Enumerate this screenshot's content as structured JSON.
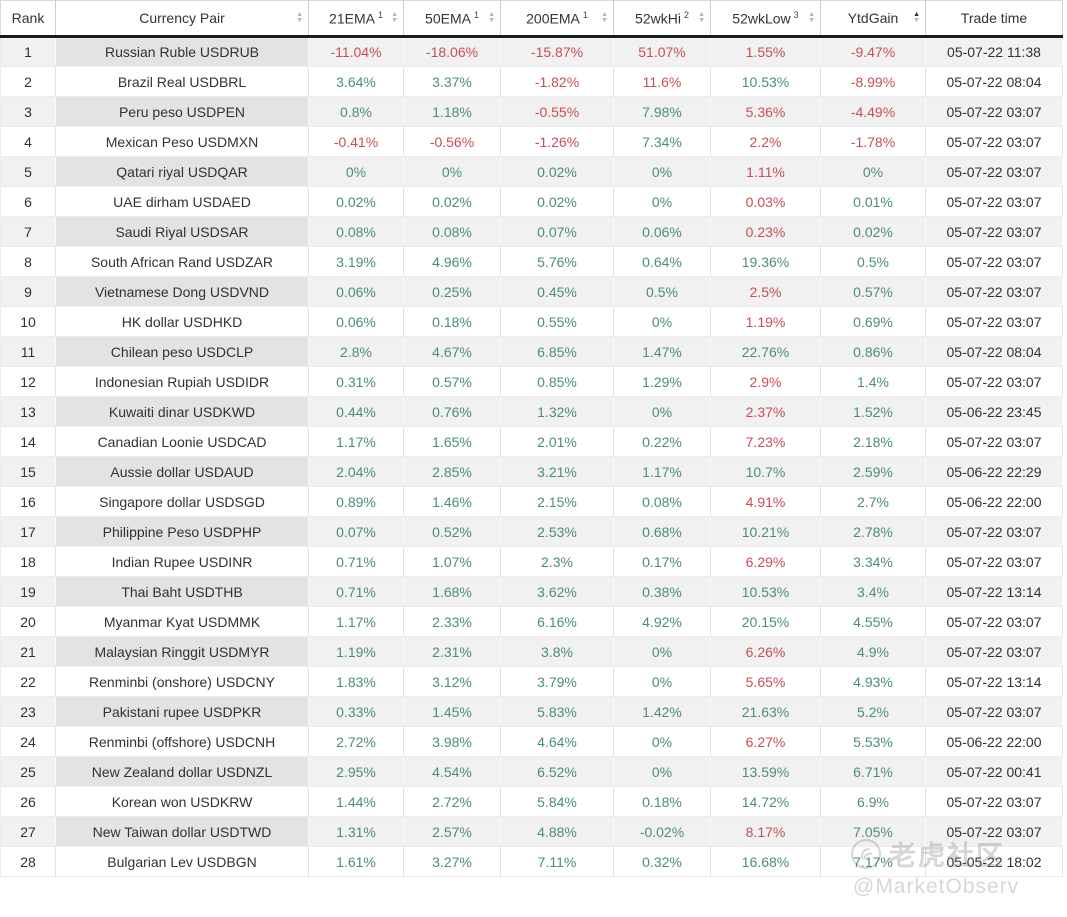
{
  "watermark": {
    "community": "老虎社区",
    "handle": "@MarketObserv",
    "logo_icon": "hand-gesture-in-circle"
  },
  "colors": {
    "positive_text": "#4b8e78",
    "negative_text": "#c94d56",
    "stripe_row_bg": "#f1f1f1",
    "stripe_pair_cell_bg": "#e3e3e3",
    "header_rule": "#1c1c1c"
  },
  "chart_data": {
    "type": "table",
    "sorted_by": "YtdGain ascending",
    "columns": [
      {
        "key": "rank",
        "label": "Rank",
        "sortable": false
      },
      {
        "key": "pair",
        "label": "Currency Pair",
        "sortable": true
      },
      {
        "key": "ema21",
        "label": "21EMA",
        "sup": "1",
        "sortable": true
      },
      {
        "key": "ema50",
        "label": "50EMA",
        "sup": "1",
        "sortable": true
      },
      {
        "key": "ema200",
        "label": "200EMA",
        "sup": "1",
        "sortable": true
      },
      {
        "key": "hi",
        "label": "52wkHi",
        "sup": "2",
        "sortable": true
      },
      {
        "key": "low",
        "label": "52wkLow",
        "sup": "3",
        "sortable": true
      },
      {
        "key": "ytd",
        "label": "YtdGain",
        "sortable": true,
        "sorted": "asc"
      },
      {
        "key": "time",
        "label": "Trade time",
        "sortable": false
      }
    ],
    "rows": [
      {
        "rank": "1",
        "pair": "Russian Ruble USDRUB",
        "ema21": "-11.04%",
        "ema50": "-18.06%",
        "ema200": "-15.87%",
        "hi": "51.07%",
        "hi_color": "red",
        "low": "1.55%",
        "low_color": "red",
        "ytd": "-9.47%",
        "time": "05-07-22 11:38"
      },
      {
        "rank": "2",
        "pair": "Brazil Real USDBRL",
        "ema21": "3.64%",
        "ema50": "3.37%",
        "ema200": "-1.82%",
        "hi": "11.6%",
        "hi_color": "red",
        "low": "10.53%",
        "low_color": "green",
        "ytd": "-8.99%",
        "time": "05-07-22 08:04"
      },
      {
        "rank": "3",
        "pair": "Peru peso USDPEN",
        "ema21": "0.8%",
        "ema50": "1.18%",
        "ema200": "-0.55%",
        "hi": "7.98%",
        "hi_color": "green",
        "low": "5.36%",
        "low_color": "red",
        "ytd": "-4.49%",
        "time": "05-07-22 03:07"
      },
      {
        "rank": "4",
        "pair": "Mexican Peso USDMXN",
        "ema21": "-0.41%",
        "ema50": "-0.56%",
        "ema200": "-1.26%",
        "hi": "7.34%",
        "hi_color": "green",
        "low": "2.2%",
        "low_color": "red",
        "ytd": "-1.78%",
        "time": "05-07-22 03:07"
      },
      {
        "rank": "5",
        "pair": "Qatari riyal USDQAR",
        "ema21": "0%",
        "ema50": "0%",
        "ema200": "0.02%",
        "hi": "0%",
        "hi_color": "green",
        "low": "1.11%",
        "low_color": "red",
        "ytd": "0%",
        "time": "05-07-22 03:07"
      },
      {
        "rank": "6",
        "pair": "UAE dirham USDAED",
        "ema21": "0.02%",
        "ema50": "0.02%",
        "ema200": "0.02%",
        "hi": "0%",
        "hi_color": "green",
        "low": "0.03%",
        "low_color": "red",
        "ytd": "0.01%",
        "time": "05-07-22 03:07"
      },
      {
        "rank": "7",
        "pair": "Saudi Riyal USDSAR",
        "ema21": "0.08%",
        "ema50": "0.08%",
        "ema200": "0.07%",
        "hi": "0.06%",
        "hi_color": "green",
        "low": "0.23%",
        "low_color": "red",
        "ytd": "0.02%",
        "time": "05-07-22 03:07"
      },
      {
        "rank": "8",
        "pair": "South African Rand USDZAR",
        "ema21": "3.19%",
        "ema50": "4.96%",
        "ema200": "5.76%",
        "hi": "0.64%",
        "hi_color": "green",
        "low": "19.36%",
        "low_color": "green",
        "ytd": "0.5%",
        "time": "05-07-22 03:07"
      },
      {
        "rank": "9",
        "pair": "Vietnamese Dong USDVND",
        "ema21": "0.06%",
        "ema50": "0.25%",
        "ema200": "0.45%",
        "hi": "0.5%",
        "hi_color": "green",
        "low": "2.5%",
        "low_color": "red",
        "ytd": "0.57%",
        "time": "05-07-22 03:07"
      },
      {
        "rank": "10",
        "pair": "HK dollar USDHKD",
        "ema21": "0.06%",
        "ema50": "0.18%",
        "ema200": "0.55%",
        "hi": "0%",
        "hi_color": "green",
        "low": "1.19%",
        "low_color": "red",
        "ytd": "0.69%",
        "time": "05-07-22 03:07"
      },
      {
        "rank": "11",
        "pair": "Chilean peso USDCLP",
        "ema21": "2.8%",
        "ema50": "4.67%",
        "ema200": "6.85%",
        "hi": "1.47%",
        "hi_color": "green",
        "low": "22.76%",
        "low_color": "green",
        "ytd": "0.86%",
        "time": "05-07-22 08:04"
      },
      {
        "rank": "12",
        "pair": "Indonesian Rupiah USDIDR",
        "ema21": "0.31%",
        "ema50": "0.57%",
        "ema200": "0.85%",
        "hi": "1.29%",
        "hi_color": "green",
        "low": "2.9%",
        "low_color": "red",
        "ytd": "1.4%",
        "time": "05-07-22 03:07"
      },
      {
        "rank": "13",
        "pair": "Kuwaiti dinar USDKWD",
        "ema21": "0.44%",
        "ema50": "0.76%",
        "ema200": "1.32%",
        "hi": "0%",
        "hi_color": "green",
        "low": "2.37%",
        "low_color": "red",
        "ytd": "1.52%",
        "time": "05-06-22 23:45"
      },
      {
        "rank": "14",
        "pair": "Canadian Loonie USDCAD",
        "ema21": "1.17%",
        "ema50": "1.65%",
        "ema200": "2.01%",
        "hi": "0.22%",
        "hi_color": "green",
        "low": "7.23%",
        "low_color": "red",
        "ytd": "2.18%",
        "time": "05-07-22 03:07"
      },
      {
        "rank": "15",
        "pair": "Aussie dollar USDAUD",
        "ema21": "2.04%",
        "ema50": "2.85%",
        "ema200": "3.21%",
        "hi": "1.17%",
        "hi_color": "green",
        "low": "10.7%",
        "low_color": "green",
        "ytd": "2.59%",
        "time": "05-06-22 22:29"
      },
      {
        "rank": "16",
        "pair": "Singapore dollar USDSGD",
        "ema21": "0.89%",
        "ema50": "1.46%",
        "ema200": "2.15%",
        "hi": "0.08%",
        "hi_color": "green",
        "low": "4.91%",
        "low_color": "red",
        "ytd": "2.7%",
        "time": "05-06-22 22:00"
      },
      {
        "rank": "17",
        "pair": "Philippine Peso USDPHP",
        "ema21": "0.07%",
        "ema50": "0.52%",
        "ema200": "2.53%",
        "hi": "0.68%",
        "hi_color": "green",
        "low": "10.21%",
        "low_color": "green",
        "ytd": "2.78%",
        "time": "05-07-22 03:07"
      },
      {
        "rank": "18",
        "pair": "Indian Rupee USDINR",
        "ema21": "0.71%",
        "ema50": "1.07%",
        "ema200": "2.3%",
        "hi": "0.17%",
        "hi_color": "green",
        "low": "6.29%",
        "low_color": "red",
        "ytd": "3.34%",
        "time": "05-07-22 03:07"
      },
      {
        "rank": "19",
        "pair": "Thai Baht USDTHB",
        "ema21": "0.71%",
        "ema50": "1.68%",
        "ema200": "3.62%",
        "hi": "0.38%",
        "hi_color": "green",
        "low": "10.53%",
        "low_color": "green",
        "ytd": "3.4%",
        "time": "05-07-22 13:14"
      },
      {
        "rank": "20",
        "pair": "Myanmar Kyat USDMMK",
        "ema21": "1.17%",
        "ema50": "2.33%",
        "ema200": "6.16%",
        "hi": "4.92%",
        "hi_color": "green",
        "low": "20.15%",
        "low_color": "green",
        "ytd": "4.55%",
        "time": "05-07-22 03:07"
      },
      {
        "rank": "21",
        "pair": "Malaysian Ringgit USDMYR",
        "ema21": "1.19%",
        "ema50": "2.31%",
        "ema200": "3.8%",
        "hi": "0%",
        "hi_color": "green",
        "low": "6.26%",
        "low_color": "red",
        "ytd": "4.9%",
        "time": "05-07-22 03:07"
      },
      {
        "rank": "22",
        "pair": "Renminbi (onshore) USDCNY",
        "ema21": "1.83%",
        "ema50": "3.12%",
        "ema200": "3.79%",
        "hi": "0%",
        "hi_color": "green",
        "low": "5.65%",
        "low_color": "red",
        "ytd": "4.93%",
        "time": "05-07-22 13:14"
      },
      {
        "rank": "23",
        "pair": "Pakistani rupee USDPKR",
        "ema21": "0.33%",
        "ema50": "1.45%",
        "ema200": "5.83%",
        "hi": "1.42%",
        "hi_color": "green",
        "low": "21.63%",
        "low_color": "green",
        "ytd": "5.2%",
        "time": "05-07-22 03:07"
      },
      {
        "rank": "24",
        "pair": "Renminbi (offshore) USDCNH",
        "ema21": "2.72%",
        "ema50": "3.98%",
        "ema200": "4.64%",
        "hi": "0%",
        "hi_color": "green",
        "low": "6.27%",
        "low_color": "red",
        "ytd": "5.53%",
        "time": "05-06-22 22:00"
      },
      {
        "rank": "25",
        "pair": "New Zealand dollar USDNZL",
        "ema21": "2.95%",
        "ema50": "4.54%",
        "ema200": "6.52%",
        "hi": "0%",
        "hi_color": "green",
        "low": "13.59%",
        "low_color": "green",
        "ytd": "6.71%",
        "time": "05-07-22 00:41"
      },
      {
        "rank": "26",
        "pair": "Korean won USDKRW",
        "ema21": "1.44%",
        "ema50": "2.72%",
        "ema200": "5.84%",
        "hi": "0.18%",
        "hi_color": "green",
        "low": "14.72%",
        "low_color": "green",
        "ytd": "6.9%",
        "time": "05-07-22 03:07"
      },
      {
        "rank": "27",
        "pair": "New Taiwan dollar USDTWD",
        "ema21": "1.31%",
        "ema50": "2.57%",
        "ema200": "4.88%",
        "hi": "-0.02%",
        "hi_color": "green",
        "low": "8.17%",
        "low_color": "red",
        "ytd": "7.05%",
        "time": "05-07-22 03:07"
      },
      {
        "rank": "28",
        "pair": "Bulgarian Lev USDBGN",
        "ema21": "1.61%",
        "ema50": "3.27%",
        "ema200": "7.11%",
        "hi": "0.32%",
        "hi_color": "green",
        "low": "16.68%",
        "low_color": "green",
        "ytd": "7.17%",
        "time": "05-05-22 18:02"
      }
    ]
  }
}
